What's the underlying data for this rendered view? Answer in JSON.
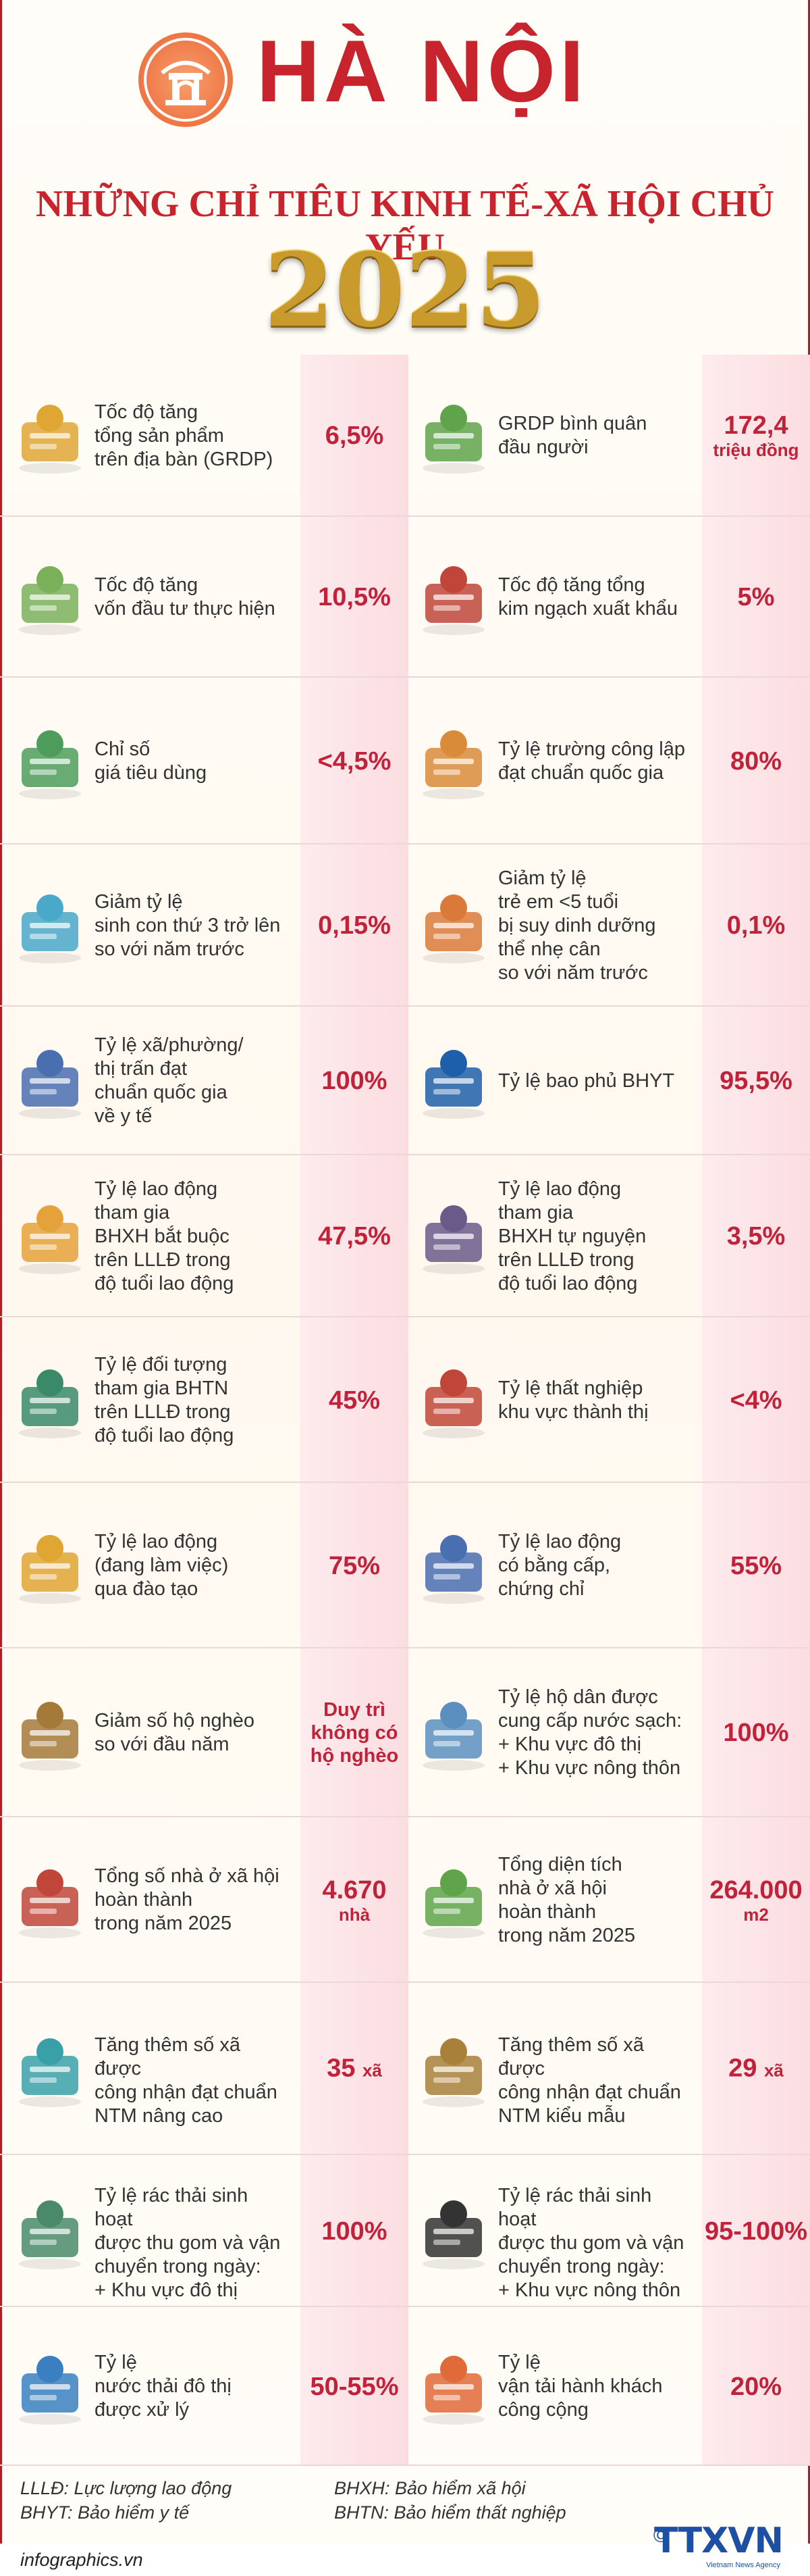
{
  "header": {
    "city": "HÀ NỘI",
    "subtitle": "NHỮNG CHỈ TIÊU KINH TẾ-XÃ HỘI CHỦ YẾU",
    "year": "2025"
  },
  "colors": {
    "accent": "#c8242d",
    "value": "#c0223a",
    "valuebox": "#fbdde1",
    "gold": "#c99a2c"
  },
  "rows": [
    {
      "left": {
        "icon": "money-bags-icon",
        "label": [
          "Tốc độ tăng",
          "tổng sản phẩm",
          "trên địa bàn (GRDP)"
        ],
        "value": "6,5%"
      },
      "right": {
        "icon": "person-money-icon",
        "label": [
          "GRDP bình quân",
          "đầu người"
        ],
        "value": "172,4",
        "unit": "triệu đồng"
      }
    },
    {
      "left": {
        "icon": "cash-stack-icon",
        "label": [
          "Tốc độ tăng",
          "vốn đầu tư thực hiện"
        ],
        "value": "10,5%"
      },
      "right": {
        "icon": "cargo-truck-icon",
        "label": [
          "Tốc độ tăng tổng",
          "kim ngạch xuất khẩu"
        ],
        "value": "5%"
      }
    },
    {
      "left": {
        "icon": "shopping-cart-icon",
        "label": [
          "Chỉ số",
          "giá tiêu dùng"
        ],
        "value": "<4,5%"
      },
      "right": {
        "icon": "school-building-icon",
        "label": [
          "Tỷ lệ trường công lập",
          "đạt chuẩn quốc gia"
        ],
        "value": "80%"
      }
    },
    {
      "left": {
        "icon": "baby-icon",
        "label": [
          "Giảm tỷ lệ",
          "sinh con thứ 3 trở lên",
          "so với năm trước"
        ],
        "value": "0,15%"
      },
      "right": {
        "icon": "child-icon",
        "label": [
          "Giảm tỷ lệ",
          "trẻ em <5 tuổi",
          "bị suy dinh dưỡng",
          "thể nhẹ cân",
          "so với năm trước"
        ],
        "value": "0,1%"
      }
    },
    {
      "left": {
        "icon": "hospital-bed-icon",
        "label": [
          "Tỷ lệ xã/phường/",
          "thị trấn đạt",
          "chuẩn quốc gia",
          "về y tế"
        ],
        "value": "100%"
      },
      "right": {
        "icon": "health-insurance-icon",
        "label": [
          "Tỷ lệ bao phủ BHYT"
        ],
        "value": "95,5%"
      }
    },
    {
      "left": {
        "icon": "worker-shovel-icon",
        "label": [
          "Tỷ lệ lao động",
          "tham gia",
          "BHXH bắt buộc",
          "trên LLLĐ trong",
          "độ tuổi lao động"
        ],
        "value": "47,5%"
      },
      "right": {
        "icon": "wheelbarrow-worker-icon",
        "label": [
          "Tỷ lệ lao động",
          "tham gia",
          "BHXH tự nguyện",
          "trên LLLĐ trong",
          "độ tuổi lao động"
        ],
        "value": "3,5%"
      }
    },
    {
      "left": {
        "icon": "meeting-icon",
        "label": [
          "Tỷ lệ đối tượng",
          "tham gia BHTN",
          "trên LLLĐ trong",
          "độ tuổi lao động"
        ],
        "value": "45%"
      },
      "right": {
        "icon": "unemployed-icon",
        "label": [
          "Tỷ lệ thất nghiệp",
          "khu vực thành thị"
        ],
        "value": "<4%"
      }
    },
    {
      "left": {
        "icon": "engineer-icon",
        "label": [
          "Tỷ lệ lao động",
          "(đang làm việc)",
          "qua đào tạo"
        ],
        "value": "75%"
      },
      "right": {
        "icon": "office-worker-icon",
        "label": [
          "Tỷ lệ lao động",
          "có bằng cấp,",
          "chứng chỉ"
        ],
        "value": "55%"
      }
    },
    {
      "left": {
        "icon": "hut-icon",
        "label": [
          "Giảm số hộ nghèo",
          "so với đầu năm"
        ],
        "value": "Duy trì không có hộ nghèo",
        "small": true
      },
      "right": {
        "icon": "water-tap-icon",
        "label": [
          "Tỷ lệ hộ dân được",
          "cung cấp nước sạch:",
          "+ Khu vực đô thị",
          "+ Khu vực nông thôn"
        ],
        "value": "100%"
      }
    },
    {
      "left": {
        "icon": "house-icon",
        "label": [
          "Tổng số nhà ở xã hội",
          "hoàn thành",
          "trong năm 2025"
        ],
        "value": "4.670",
        "unit": "nhà"
      },
      "right": {
        "icon": "house-green-icon",
        "label": [
          "Tổng diện tích",
          "nhà ở xã hội",
          "hoàn thành",
          "trong năm 2025"
        ],
        "value": "264.000",
        "unit": "m2"
      }
    },
    {
      "left": {
        "icon": "rural-landscape-icon",
        "label": [
          "Tăng thêm số xã được",
          "công nhận đạt chuẩn",
          "NTM nâng cao"
        ],
        "value": "35",
        "unit": "xã",
        "inline": true
      },
      "right": {
        "icon": "farm-field-icon",
        "label": [
          "Tăng thêm số xã được",
          "công nhận đạt chuẩn",
          "NTM kiểu mẫu"
        ],
        "value": "29",
        "unit": "xã",
        "inline": true
      }
    },
    {
      "left": {
        "icon": "garbage-truck-icon",
        "label": [
          "Tỷ lệ rác thải sinh hoạt",
          "được thu gom và vận",
          "chuyển trong ngày:",
          "+ Khu vực đô thị"
        ],
        "value": "100%"
      },
      "right": {
        "icon": "trash-bags-icon",
        "label": [
          "Tỷ lệ rác thải sinh hoạt",
          "được thu gom và vận",
          "chuyển trong ngày:",
          "+ Khu vực nông thôn"
        ],
        "value": "95-100%"
      }
    },
    {
      "left": {
        "icon": "wastewater-pipe-icon",
        "label": [
          "Tỷ lệ",
          "nước thải đô thị",
          "được xử lý"
        ],
        "value": "50-55%"
      },
      "right": {
        "icon": "public-transport-icon",
        "label": [
          "Tỷ lệ",
          "vận tải hành khách",
          "công cộng"
        ],
        "value": "20%"
      }
    }
  ],
  "footer": {
    "notes": [
      "LLLĐ: Lực lượng lao động",
      "BHXH: Bảo hiểm xã hội",
      "BHYT: Bảo hiểm y tế",
      "BHTN: Bảo hiểm thất nghiệp"
    ],
    "url": "infographics.vn",
    "brand": "TTXVN",
    "brand_copy": "©",
    "brand_tag": "Vietnam News Agency"
  }
}
